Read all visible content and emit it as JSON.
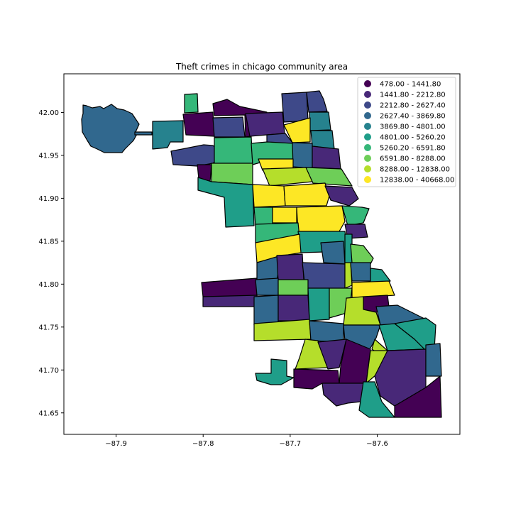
{
  "title": "Theft crimes in chicago community area",
  "map": {
    "type": "choropleth",
    "xlim": [
      -87.96,
      -87.505
    ],
    "ylim": [
      41.625,
      42.045
    ],
    "x_ticks": [
      -87.9,
      -87.8,
      -87.7,
      -87.6
    ],
    "x_tick_labels": [
      "−87.9",
      "−87.8",
      "−87.7",
      "−87.6"
    ],
    "y_ticks": [
      41.65,
      41.7,
      41.75,
      41.8,
      41.85,
      41.9,
      41.95,
      42.0
    ],
    "y_tick_labels": [
      "41.65",
      "41.70",
      "41.75",
      "41.80",
      "41.85",
      "41.90",
      "41.95",
      "42.00"
    ],
    "legend_placement": "top-right",
    "legend": [
      {
        "label": "478.00 - 1441.80",
        "color": "#440154"
      },
      {
        "label": "1441.80 - 2212.80",
        "color": "#482878"
      },
      {
        "label": "2212.80 - 2627.40",
        "color": "#3e4989"
      },
      {
        "label": "2627.40 - 3869.80",
        "color": "#31688e"
      },
      {
        "label": "3869.80 - 4801.00",
        "color": "#26828e"
      },
      {
        "label": "4801.00 - 5260.20",
        "color": "#1f9e89"
      },
      {
        "label": "5260.20 - 6591.80",
        "color": "#35b779"
      },
      {
        "label": "6591.80 - 8288.00",
        "color": "#6ece58"
      },
      {
        "label": "8288.00 - 12838.00",
        "color": "#b5de2b"
      },
      {
        "label": "12838.00 - 40668.00",
        "color": "#fde725"
      }
    ]
  }
}
